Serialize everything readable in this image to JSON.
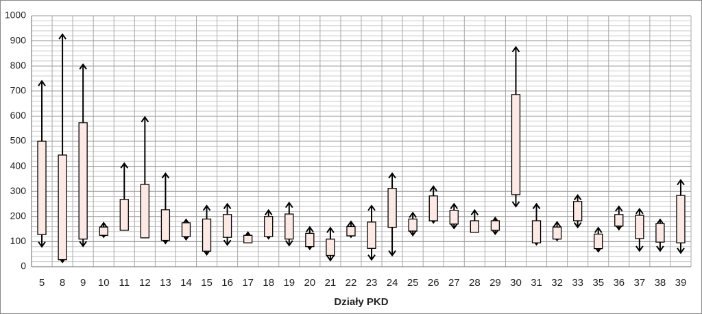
{
  "chart_data": {
    "type": "range",
    "x_label": "Działy PKD",
    "categories": [
      "5",
      "8",
      "9",
      "10",
      "11",
      "12",
      "13",
      "14",
      "15",
      "16",
      "17",
      "18",
      "19",
      "20",
      "21",
      "22",
      "23",
      "24",
      "25",
      "26",
      "27",
      "28",
      "29",
      "30",
      "31",
      "32",
      "33",
      "35",
      "36",
      "37",
      "38",
      "39"
    ],
    "box_low": [
      128,
      28,
      110,
      125,
      145,
      115,
      105,
      120,
      62,
      117,
      95,
      120,
      110,
      80,
      45,
      123,
      73,
      157,
      142,
      183,
      170,
      137,
      145,
      287,
      95,
      110,
      183,
      72,
      162,
      112,
      98,
      95
    ],
    "box_high": [
      500,
      445,
      574,
      158,
      268,
      328,
      227,
      175,
      190,
      208,
      125,
      200,
      210,
      133,
      110,
      160,
      178,
      312,
      190,
      282,
      225,
      183,
      183,
      686,
      183,
      158,
      260,
      130,
      208,
      205,
      172,
      284
    ],
    "min": [
      80,
      18,
      82,
      118,
      null,
      null,
      93,
      108,
      48,
      87,
      null,
      112,
      85,
      70,
      25,
      118,
      28,
      45,
      125,
      175,
      153,
      null,
      130,
      240,
      88,
      105,
      157,
      60,
      148,
      63,
      63,
      55
    ],
    "max": [
      740,
      926,
      806,
      175,
      412,
      596,
      372,
      188,
      243,
      250,
      137,
      225,
      255,
      158,
      155,
      180,
      243,
      372,
      215,
      320,
      250,
      225,
      195,
      875,
      250,
      178,
      285,
      155,
      240,
      230,
      188,
      345
    ],
    "box_color": "#fde9e4",
    "ylim": [
      0,
      1000
    ],
    "yticks": [
      0,
      100,
      200,
      300,
      400,
      500,
      600,
      700,
      800,
      900,
      1000
    ],
    "minor_grid_step": 20,
    "grid": true
  }
}
